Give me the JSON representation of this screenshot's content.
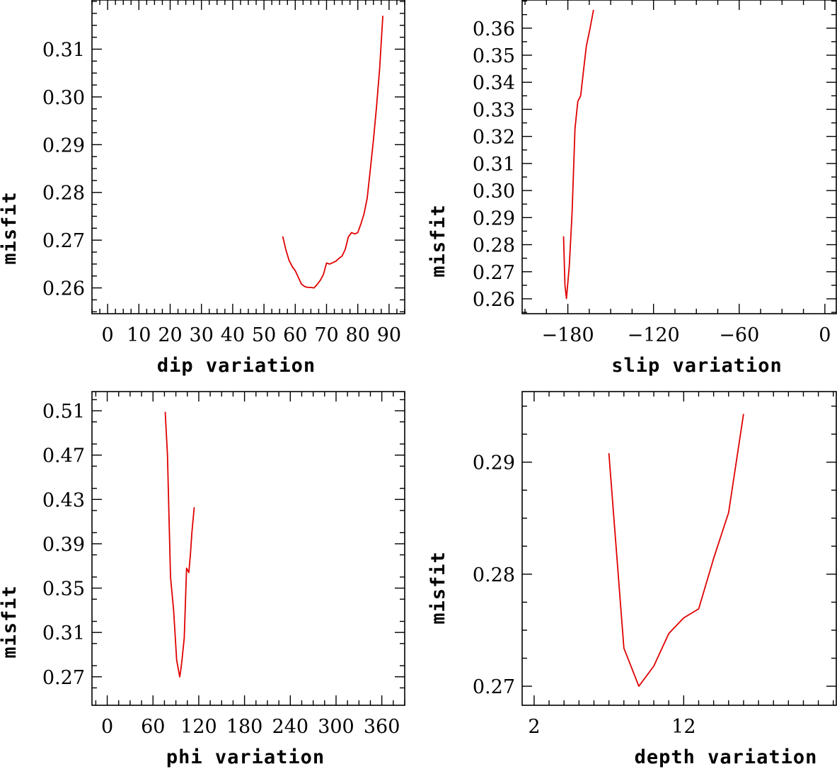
{
  "chart_data": [
    {
      "type": "line",
      "xlabel": "dip   variation",
      "ylabel": "misfit",
      "xlim": [
        -5,
        95
      ],
      "ylim": [
        0.2546,
        0.3203
      ],
      "xticks": [
        0,
        10,
        20,
        30,
        40,
        50,
        60,
        70,
        80,
        90
      ],
      "xtick_labels": [
        "0",
        "10",
        "20",
        "30",
        "40",
        "50",
        "60",
        "70",
        "80",
        "90"
      ],
      "xtick_minor": 2.5,
      "yticks": [
        0.26,
        0.27,
        0.28,
        0.29,
        0.3,
        0.31
      ],
      "ytick_labels": [
        "0.26",
        "0.27",
        "0.28",
        "0.29",
        "0.30",
        "0.31"
      ],
      "ytick_minor": 0.0025,
      "series": [
        {
          "name": "dip",
          "color": "#e00000",
          "x": [
            56,
            57,
            58,
            59,
            60,
            61,
            62,
            63,
            64,
            65,
            66,
            67,
            68,
            69,
            70,
            71,
            72,
            73,
            74,
            75,
            76,
            77,
            78,
            79,
            80,
            81,
            82,
            83,
            84,
            85,
            86,
            87,
            88
          ],
          "y": [
            0.2708,
            0.268,
            0.2658,
            0.2645,
            0.2636,
            0.2622,
            0.2608,
            0.2603,
            0.2601,
            0.2601,
            0.26,
            0.2607,
            0.2616,
            0.2628,
            0.2652,
            0.265,
            0.2653,
            0.2656,
            0.2662,
            0.2667,
            0.2681,
            0.2707,
            0.2716,
            0.2713,
            0.2716,
            0.2734,
            0.2755,
            0.2788,
            0.2848,
            0.291,
            0.298,
            0.306,
            0.317
          ]
        }
      ]
    },
    {
      "type": "line",
      "xlabel": "slip   variation",
      "ylabel": "misfit",
      "xlim": [
        -212,
        8
      ],
      "ylim": [
        0.2545,
        0.3704
      ],
      "xticks": [
        -180,
        -120,
        -60,
        0
      ],
      "xtick_labels": [
        "−180",
        "−120",
        "−60",
        "0"
      ],
      "xtick_minor": 15,
      "yticks": [
        0.26,
        0.27,
        0.28,
        0.29,
        0.3,
        0.31,
        0.32,
        0.33,
        0.34,
        0.35,
        0.36
      ],
      "ytick_labels": [
        "0.26",
        "0.27",
        "0.28",
        "0.29",
        "0.30",
        "0.31",
        "0.32",
        "0.33",
        "0.34",
        "0.35",
        "0.36"
      ],
      "ytick_minor": 0.005,
      "series": [
        {
          "name": "slip",
          "color": "#e00000",
          "x": [
            -183,
            -182,
            -181,
            -179,
            -177,
            -175,
            -173,
            -171,
            -169,
            -167,
            -165,
            -162
          ],
          "y": [
            0.2831,
            0.265,
            0.2601,
            0.272,
            0.292,
            0.323,
            0.333,
            0.335,
            0.3445,
            0.3535,
            0.3585,
            0.3668
          ]
        }
      ]
    },
    {
      "type": "line",
      "xlabel": "phi    variation",
      "ylabel": "misfit",
      "xlim": [
        -20,
        390
      ],
      "ylim": [
        0.2443,
        0.5273
      ],
      "xticks": [
        0,
        60,
        120,
        180,
        240,
        300,
        360
      ],
      "xtick_labels": [
        "0",
        "60",
        "120",
        "180",
        "240",
        "300",
        "360"
      ],
      "xtick_minor": 15,
      "yticks": [
        0.27,
        0.31,
        0.35,
        0.39,
        0.43,
        0.47,
        0.51
      ],
      "ytick_labels": [
        "0.27",
        "0.31",
        "0.35",
        "0.39",
        "0.43",
        "0.47",
        "0.51"
      ],
      "ytick_minor": 0.02,
      "series": [
        {
          "name": "phi",
          "color": "#e00000",
          "x": [
            76,
            79,
            83,
            87,
            91,
            95,
            96,
            98,
            101,
            104,
            107,
            109,
            111,
            114
          ],
          "y": [
            0.509,
            0.47,
            0.36,
            0.33,
            0.285,
            0.27,
            0.274,
            0.285,
            0.305,
            0.368,
            0.364,
            0.38,
            0.4,
            0.423
          ]
        }
      ]
    },
    {
      "type": "line",
      "xlabel": "depth   variation",
      "ylabel": "misfit",
      "xlim": [
        1.2,
        22.2
      ],
      "ylim": [
        0.2683,
        0.2963
      ],
      "xticks": [
        2,
        12
      ],
      "xtick_labels": [
        "2",
        "12"
      ],
      "xtick_minor": 1,
      "yticks": [
        0.27,
        0.28,
        0.29
      ],
      "ytick_labels": [
        "0.27",
        "0.28",
        "0.29"
      ],
      "ytick_minor": 0.0025,
      "series": [
        {
          "name": "depth",
          "color": "#e00000",
          "x": [
            7,
            8,
            9,
            10,
            11,
            12,
            13,
            14,
            15,
            16
          ],
          "y": [
            0.2908,
            0.2734,
            0.27,
            0.2718,
            0.2747,
            0.2761,
            0.2769,
            0.2814,
            0.2855,
            0.2943
          ]
        }
      ]
    }
  ]
}
